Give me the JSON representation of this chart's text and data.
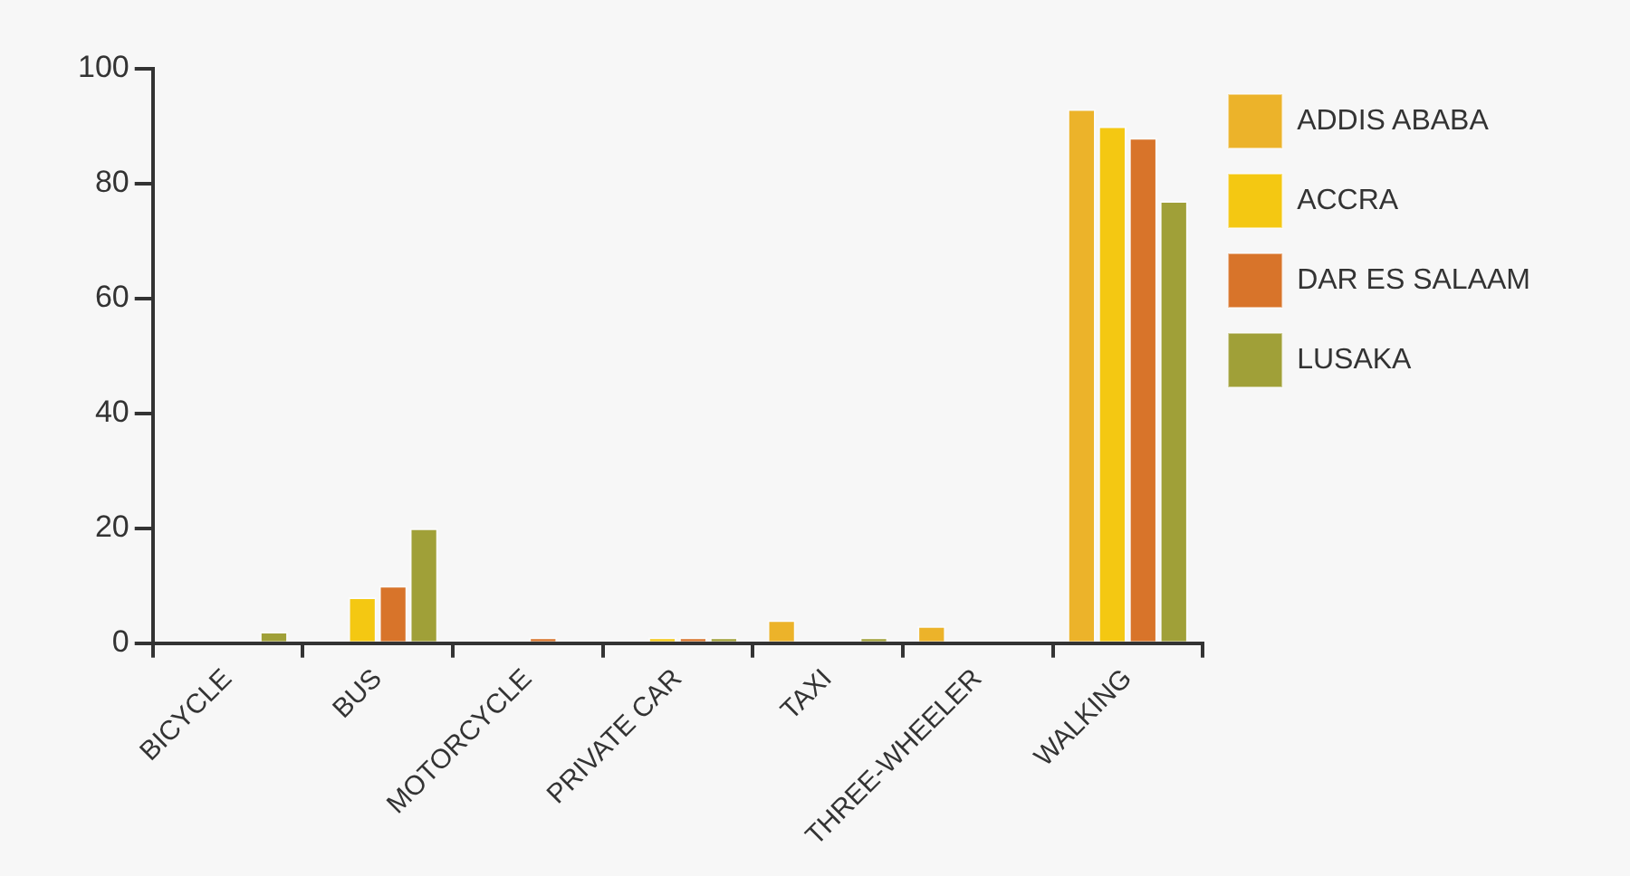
{
  "chart_data": {
    "type": "bar",
    "categories": [
      "BICYCLE",
      "BUS",
      "MOTORCYCLE",
      "PRIVATE CAR",
      "TAXI",
      "THREE-WHEELER",
      "WALKING"
    ],
    "series": [
      {
        "name": "ADDIS ABABA",
        "color": "#ecb32a",
        "values": [
          0,
          0,
          0,
          0,
          4,
          3,
          93
        ]
      },
      {
        "name": "ACCRA",
        "color": "#f4c812",
        "values": [
          0,
          8,
          0,
          1,
          0,
          0,
          90
        ]
      },
      {
        "name": "DAR ES SALAAM",
        "color": "#d8742a",
        "values": [
          0,
          10,
          1,
          1,
          0,
          0,
          88
        ]
      },
      {
        "name": "LUSAKA",
        "color": "#a0a038",
        "values": [
          2,
          20,
          0,
          1,
          1,
          0,
          77
        ]
      }
    ],
    "ylim": [
      0,
      100
    ],
    "yticks": [
      0,
      20,
      40,
      60,
      80,
      100
    ],
    "grid": false,
    "legend": "right"
  }
}
